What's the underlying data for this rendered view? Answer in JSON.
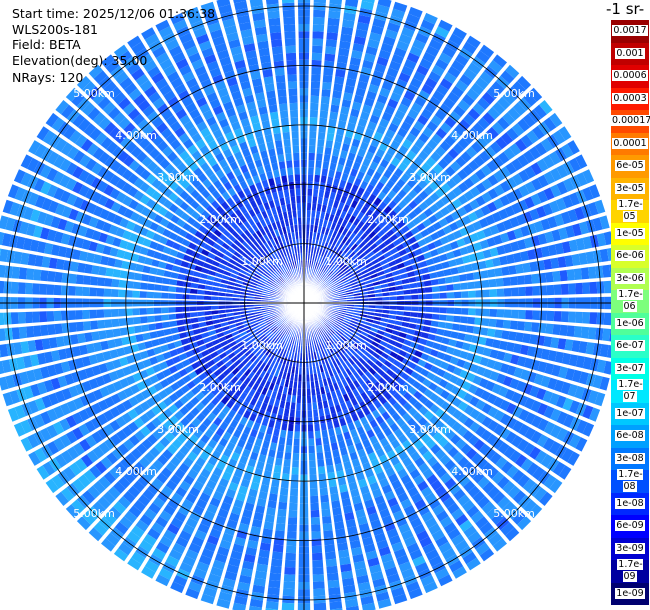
{
  "header": {
    "start_time": "Start time: 2025/12/06 01:36:38",
    "instrument": "WLS200s-181",
    "field": "Field: BETA",
    "elevation": "Elevation(deg): 35.00",
    "nrays": "NRays: 120"
  },
  "colorbar": {
    "unit_label": "-1 sr-",
    "levels": [
      "0.0017",
      "0.001",
      "0.0006",
      "0.0003",
      "0.00017",
      "0.0001",
      "6e-05",
      "3e-05",
      "1.7e-05",
      "1e-05",
      "6e-06",
      "3e-06",
      "1.7e-06",
      "1e-06",
      "6e-07",
      "3e-07",
      "1.7e-07",
      "1e-07",
      "6e-08",
      "3e-08",
      "1.7e-08",
      "1e-08",
      "6e-09",
      "3e-09",
      "1.7e-09",
      "1e-09"
    ],
    "colors": [
      "#9a0000",
      "#c00000",
      "#e00000",
      "#ff1a00",
      "#ff4a00",
      "#ff7a00",
      "#ff9a00",
      "#ffb400",
      "#ffd400",
      "#ffff00",
      "#d8ff2a",
      "#b0ff50",
      "#7dff7d",
      "#50ff9a",
      "#2affc8",
      "#00ffe6",
      "#00e8ff",
      "#00c8ff",
      "#00a0ff",
      "#0078ff",
      "#0050ff",
      "#0028ff",
      "#0000ff",
      "#0000d0",
      "#0000a0",
      "#000070"
    ]
  },
  "chart_data": {
    "type": "heatmap",
    "subtype": "polar-ppi",
    "rays": 120,
    "azimuth_range": [
      0,
      360
    ],
    "range_rings_km": [
      1,
      2,
      3,
      4,
      5
    ],
    "ring_labels": [
      "1.00km",
      "2.00km",
      "3.00km",
      "4.00km",
      "5.00km"
    ],
    "max_range_km": 5.3,
    "dominant_values": "1e-08 to 1e-07 (blue)",
    "features": "higher values (~1e-07 to 1.7e-07, cyan) near 3.0 km ring and at the outer edge, sector west-southwest"
  }
}
